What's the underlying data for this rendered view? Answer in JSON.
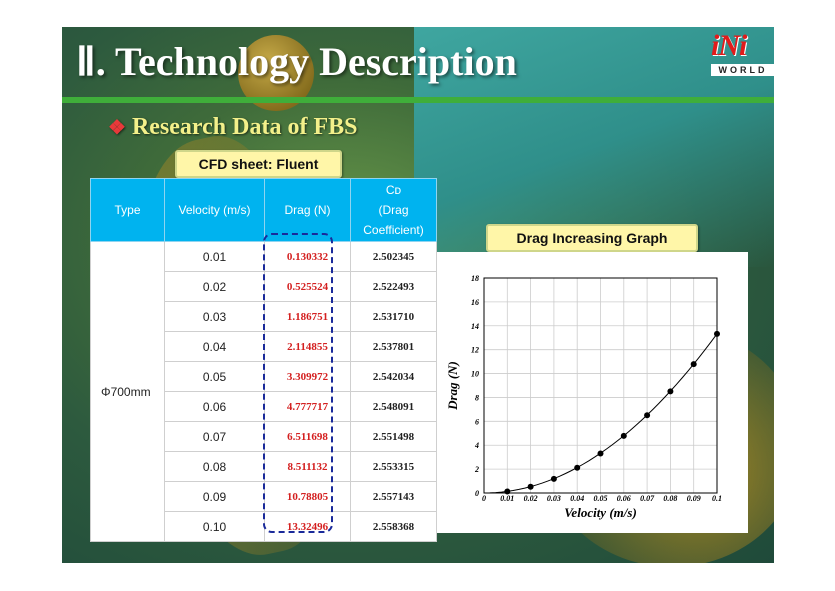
{
  "header": {
    "title": "Ⅱ. Technology Description",
    "subtitle_bullet": "❖",
    "subtitle": "Research Data of FBS",
    "logo_text": "iNi",
    "logo_sub": "WORLD"
  },
  "colors": {
    "accent_green": "#3fae3a",
    "table_header": "#00b3ef",
    "drag_red": "#d42020",
    "label_yellow": "#fff6a8",
    "dash_blue": "#1a2a9a"
  },
  "table": {
    "label": "CFD sheet: Fluent",
    "headers": {
      "type": "Type",
      "velocity": "Velocity (m/s)",
      "drag": "Drag (N)",
      "cd_symbol": "Cᴅ",
      "cd_text": "(Drag Coefficient)"
    },
    "type_value": "Φ700mm",
    "rows": [
      {
        "velocity": "0.01",
        "drag": "0.130332",
        "cd": "2.502345"
      },
      {
        "velocity": "0.02",
        "drag": "0.525524",
        "cd": "2.522493"
      },
      {
        "velocity": "0.03",
        "drag": "1.186751",
        "cd": "2.531710"
      },
      {
        "velocity": "0.04",
        "drag": "2.114855",
        "cd": "2.537801"
      },
      {
        "velocity": "0.05",
        "drag": "3.309972",
        "cd": "2.542034"
      },
      {
        "velocity": "0.06",
        "drag": "4.777717",
        "cd": "2.548091"
      },
      {
        "velocity": "0.07",
        "drag": "6.511698",
        "cd": "2.551498"
      },
      {
        "velocity": "0.08",
        "drag": "8.511132",
        "cd": "2.553315"
      },
      {
        "velocity": "0.09",
        "drag": "10.78805",
        "cd": "2.557143"
      },
      {
        "velocity": "0.10",
        "drag": "13.32496",
        "cd": "2.558368"
      }
    ]
  },
  "chart_label": "Drag Increasing Graph",
  "chart_data": {
    "type": "line",
    "x": [
      0.01,
      0.02,
      0.03,
      0.04,
      0.05,
      0.06,
      0.07,
      0.08,
      0.09,
      0.1
    ],
    "series": [
      {
        "values": [
          0.130332,
          0.525524,
          1.186751,
          2.114855,
          3.309972,
          4.777717,
          6.511698,
          8.511132,
          10.78805,
          13.32496
        ]
      }
    ],
    "xlabel": "Velocity (m/s)",
    "ylabel": "Drag (N)",
    "xlim": [
      0,
      0.1
    ],
    "ylim": [
      0,
      18
    ],
    "xticks": [
      "0",
      "0.01",
      "0.02",
      "0.03",
      "0.04",
      "0.05",
      "0.06",
      "0.07",
      "0.08",
      "0.09",
      "0.1"
    ],
    "yticks": [
      "0",
      "2",
      "4",
      "6",
      "8",
      "10",
      "12",
      "14",
      "16",
      "18"
    ],
    "grid": true,
    "markers": "filled-circle"
  }
}
